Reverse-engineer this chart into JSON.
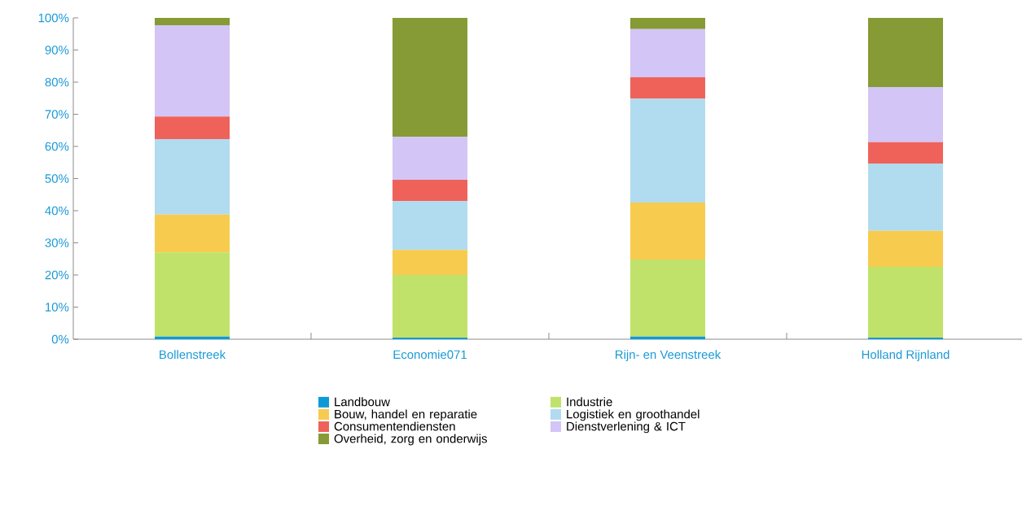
{
  "chart_data": {
    "type": "bar",
    "stacked": true,
    "categories": [
      "Bollenstreek",
      "Economie071",
      "Rijn- en Veenstreek",
      "Holland Rijnland"
    ],
    "series": [
      {
        "name": "Landbouw",
        "color": "#0e9ad7",
        "values": [
          0.8,
          0.5,
          0.8,
          0.5
        ]
      },
      {
        "name": "Industrie",
        "color": "#c0e26a",
        "values": [
          26.2,
          19.5,
          24,
          22
        ]
      },
      {
        "name": "Bouw, handel en reparatie",
        "color": "#f7cb4d",
        "values": [
          11.8,
          7.8,
          17.7,
          11.2
        ]
      },
      {
        "name": "Logistiek en groothandel",
        "color": "#b1dbef",
        "values": [
          23.5,
          15.2,
          32.4,
          21
        ]
      },
      {
        "name": "Consumentendiensten",
        "color": "#ef625a",
        "values": [
          7,
          6.6,
          6.6,
          6.6
        ]
      },
      {
        "name": "Dienstverlening & ICT",
        "color": "#d3c5f5",
        "values": [
          28.4,
          13.4,
          15,
          17.2
        ]
      },
      {
        "name": "Overheid, zorg en onderwijs",
        "color": "#869a35",
        "values": [
          2.3,
          37,
          3.5,
          21.5
        ]
      }
    ],
    "ylim": [
      0,
      100
    ],
    "yticks": [
      {
        "value": 0,
        "label": "0%"
      },
      {
        "value": 10,
        "label": "10%"
      },
      {
        "value": 20,
        "label": "20%"
      },
      {
        "value": 30,
        "label": "30%"
      },
      {
        "value": 40,
        "label": "40%"
      },
      {
        "value": 50,
        "label": "50%"
      },
      {
        "value": 60,
        "label": "60%"
      },
      {
        "value": 70,
        "label": "70%"
      },
      {
        "value": 80,
        "label": "80%"
      },
      {
        "value": 90,
        "label": "90%"
      },
      {
        "value": 100,
        "label": "100%"
      }
    ],
    "grid": false,
    "legend": "bottom"
  }
}
